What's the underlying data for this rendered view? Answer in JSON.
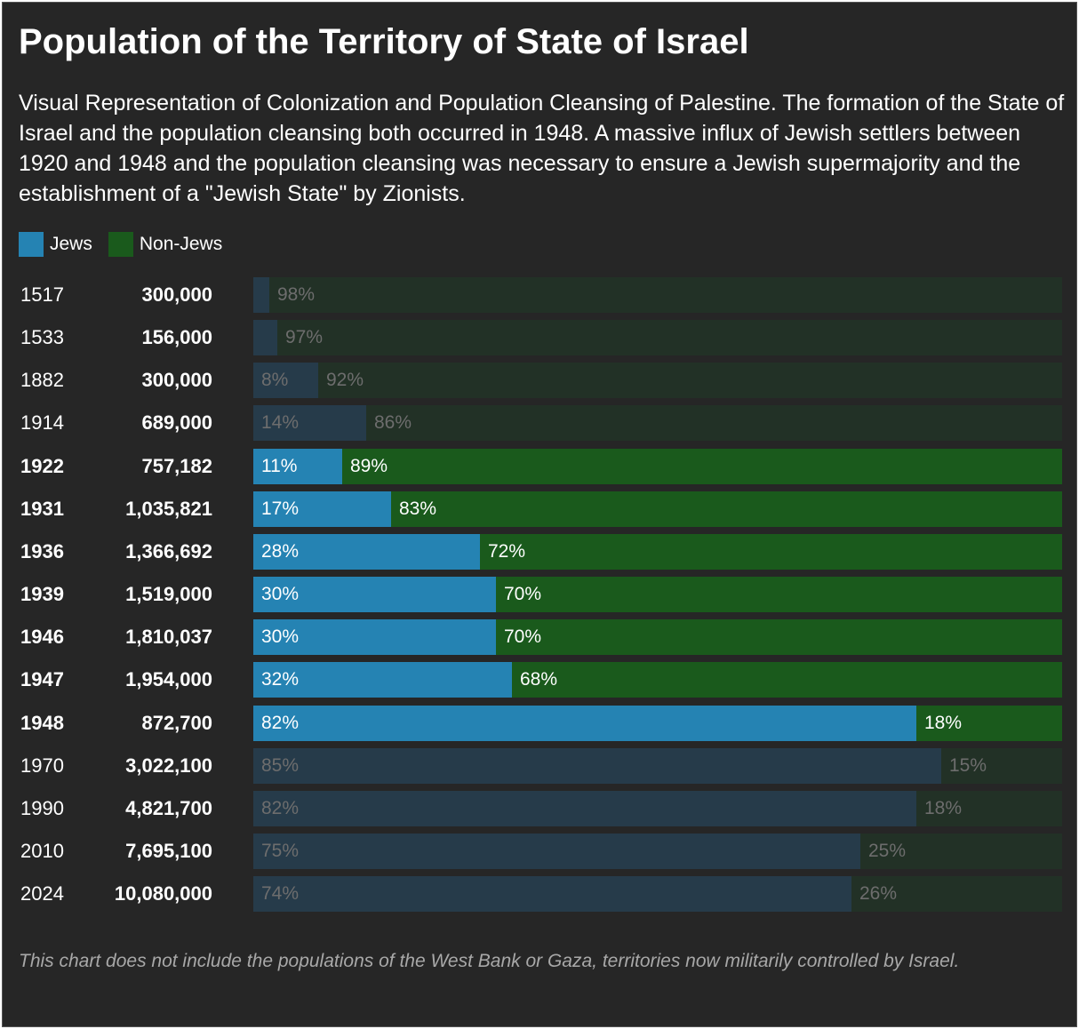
{
  "title": "Population of the Territory of State of Israel",
  "subtitle": "Visual Representation of Colonization and Population Cleansing of Palestine. The formation of the State of Israel and the population cleansing both occurred in 1948. A massive influx of Jewish settlers between 1920 and 1948 and the population cleansing was necessary to ensure a Jewish supermajority and the establishment of a \"Jewish State\" by Zionists.",
  "footnote": "This chart does not include the populations of the West Bank or Gaza, territories now militarily controlled by Israel.",
  "colors": {
    "jews": "#2583b3",
    "non_jews": "#1a5a1c",
    "jews_dim": "#263b4a",
    "non_jews_dim": "#223126"
  },
  "chart_data": {
    "type": "bar",
    "orientation": "horizontal",
    "stacked": true,
    "percent_stacked": true,
    "title": "Population of the Territory of State of Israel",
    "legend": {
      "position": "top-left",
      "entries": [
        "Jews",
        "Non-Jews"
      ]
    },
    "categories": [
      "1517",
      "1533",
      "1882",
      "1914",
      "1922",
      "1931",
      "1936",
      "1939",
      "1946",
      "1947",
      "1948",
      "1970",
      "1990",
      "2010",
      "2024"
    ],
    "population_labels": [
      "300,000",
      "156,000",
      "300,000",
      "689,000",
      "757,182",
      "1,035,821",
      "1,366,692",
      "1,519,000",
      "1,810,037",
      "1,954,000",
      "872,700",
      "3,022,100",
      "4,821,700",
      "7,695,100",
      "10,080,000"
    ],
    "highlighted": [
      false,
      false,
      false,
      false,
      true,
      true,
      true,
      true,
      true,
      true,
      true,
      false,
      false,
      false,
      false
    ],
    "series": [
      {
        "name": "Jews",
        "values": [
          2,
          3,
          8,
          14,
          11,
          17,
          28,
          30,
          30,
          32,
          82,
          85,
          82,
          75,
          74
        ],
        "labels": [
          "",
          "",
          "8%",
          "14%",
          "11%",
          "17%",
          "28%",
          "30%",
          "30%",
          "32%",
          "82%",
          "85%",
          "82%",
          "75%",
          "74%"
        ]
      },
      {
        "name": "Non-Jews",
        "values": [
          98,
          97,
          92,
          86,
          89,
          83,
          72,
          70,
          70,
          68,
          18,
          15,
          18,
          25,
          26
        ],
        "labels": [
          "98%",
          "97%",
          "92%",
          "86%",
          "89%",
          "83%",
          "72%",
          "70%",
          "70%",
          "68%",
          "18%",
          "15%",
          "18%",
          "25%",
          "26%"
        ]
      }
    ],
    "xlim": [
      0,
      100
    ]
  }
}
